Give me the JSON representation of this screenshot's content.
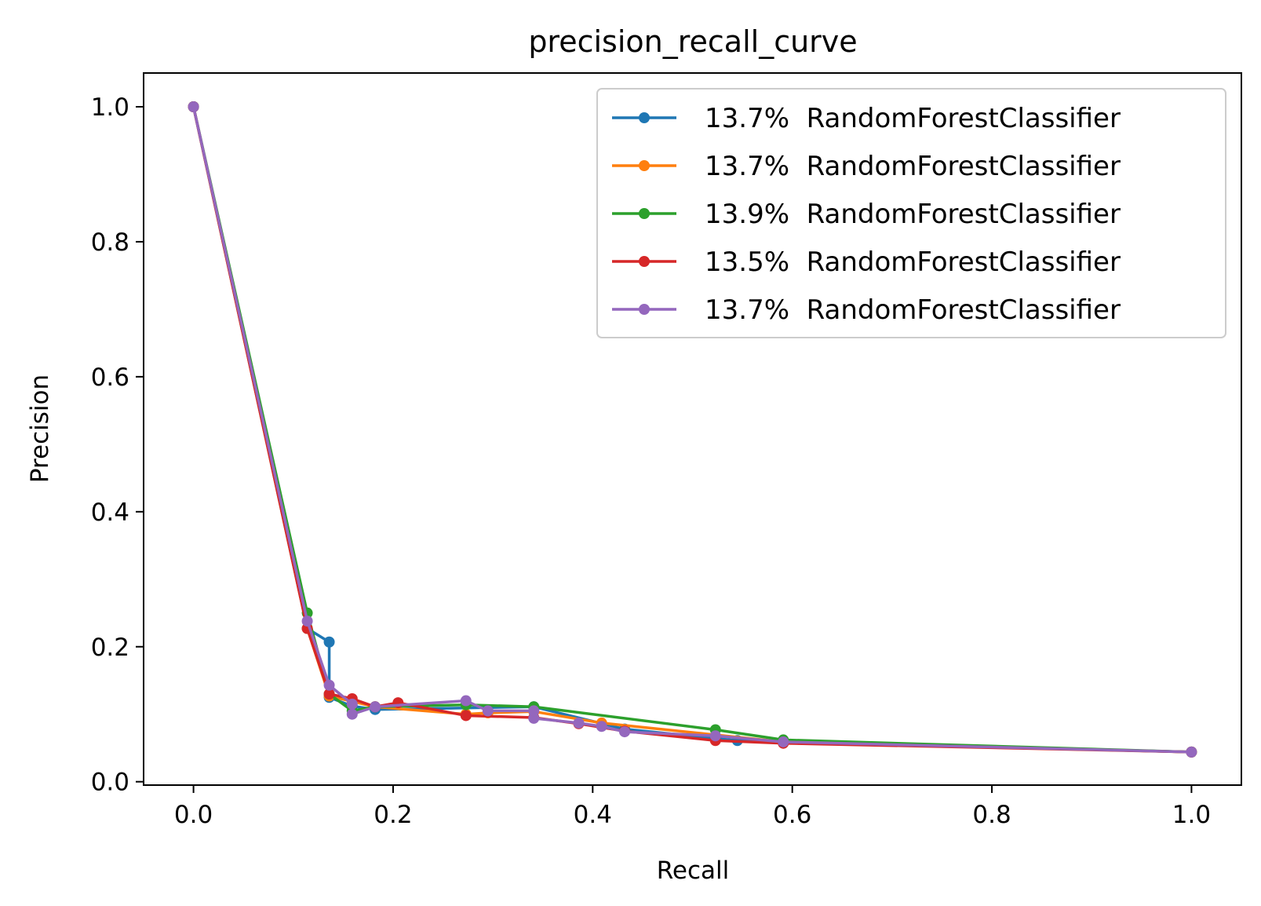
{
  "chart_data": {
    "type": "line",
    "title": "precision_recall_curve",
    "xlabel": "Recall",
    "ylabel": "Precision",
    "xlim": [
      -0.05,
      1.05
    ],
    "ylim": [
      -0.005,
      1.05
    ],
    "xticks": [
      "0.0",
      "0.2",
      "0.4",
      "0.6",
      "0.8",
      "1.0"
    ],
    "yticks": [
      "0.0",
      "0.2",
      "0.4",
      "0.6",
      "0.8",
      "1.0"
    ],
    "grid": false,
    "legend_position": "top-right",
    "markers": true,
    "series": [
      {
        "name": "13.7%  RandomForestClassifier",
        "color": "#1f77b4",
        "x": [
          1.0,
          0.545,
          0.432,
          0.341,
          0.182,
          0.159,
          0.136,
          0.136,
          0.114,
          0.0
        ],
        "y": [
          0.044,
          0.061,
          0.078,
          0.111,
          0.107,
          0.112,
          0.125,
          0.207,
          0.227,
          1.0
        ]
      },
      {
        "name": "13.7%  RandomForestClassifier",
        "color": "#ff7f0e",
        "x": [
          1.0,
          0.591,
          0.409,
          0.341,
          0.295,
          0.273,
          0.182,
          0.159,
          0.136,
          0.114,
          0.0
        ],
        "y": [
          0.044,
          0.059,
          0.087,
          0.104,
          0.102,
          0.1,
          0.111,
          0.119,
          0.127,
          0.227,
          1.0
        ]
      },
      {
        "name": "13.9%  RandomForestClassifier",
        "color": "#2ca02c",
        "x": [
          1.0,
          0.591,
          0.523,
          0.341,
          0.273,
          0.182,
          0.159,
          0.136,
          0.114,
          0.0
        ],
        "y": [
          0.044,
          0.062,
          0.077,
          0.111,
          0.114,
          0.111,
          0.105,
          0.13,
          0.25,
          1.0
        ]
      },
      {
        "name": "13.5%  RandomForestClassifier",
        "color": "#d62728",
        "x": [
          1.0,
          0.591,
          0.523,
          0.432,
          0.386,
          0.341,
          0.273,
          0.205,
          0.182,
          0.159,
          0.136,
          0.114,
          0.0
        ],
        "y": [
          0.044,
          0.057,
          0.061,
          0.075,
          0.086,
          0.095,
          0.098,
          0.117,
          0.111,
          0.123,
          0.13,
          0.227,
          1.0
        ]
      },
      {
        "name": "13.7%  RandomForestClassifier",
        "color": "#9467bd",
        "x": [
          1.0,
          0.591,
          0.523,
          0.432,
          0.409,
          0.386,
          0.341,
          0.341,
          0.295,
          0.273,
          0.182,
          0.159,
          0.159,
          0.136,
          0.114,
          0.0
        ],
        "y": [
          0.044,
          0.059,
          0.068,
          0.074,
          0.082,
          0.087,
          0.094,
          0.105,
          0.105,
          0.12,
          0.111,
          0.1,
          0.115,
          0.143,
          0.238,
          1.0
        ]
      }
    ]
  }
}
